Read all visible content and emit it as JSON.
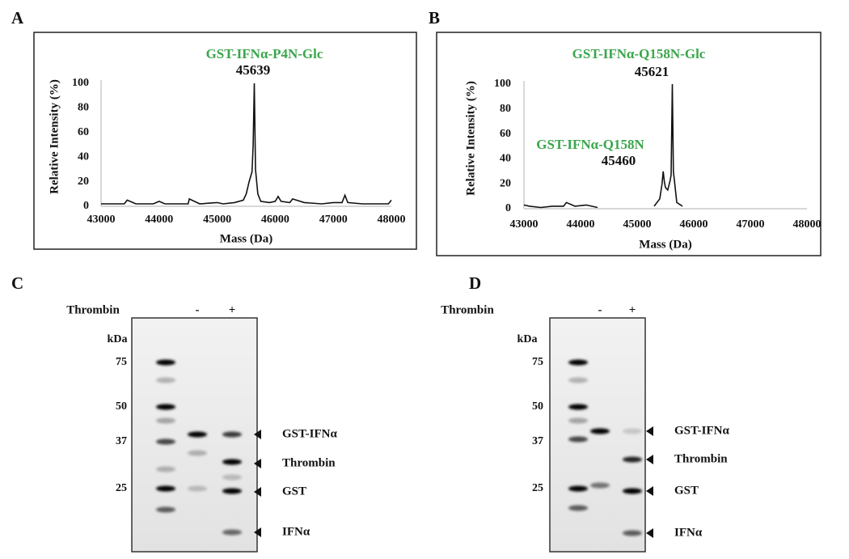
{
  "chart_data": [
    {
      "type": "line",
      "panel": "A",
      "xlabel": "Mass (Da)",
      "ylabel": "Relative Intensity (%)",
      "annotations": [
        {
          "text": "GST-IFNα-P4N-Glc",
          "color": "#3aa64c"
        },
        {
          "text": "45639",
          "color": "#111111"
        }
      ],
      "xlim": [
        43000,
        48000
      ],
      "ylim": [
        0,
        100
      ],
      "xticks": [
        43000,
        44000,
        45000,
        46000,
        47000,
        48000
      ],
      "yticks": [
        0,
        20,
        40,
        60,
        80,
        100
      ],
      "color": "#111111",
      "x": [
        43000,
        43200,
        43400,
        43450,
        43600,
        43900,
        44000,
        44100,
        44500,
        44520,
        44700,
        45000,
        45100,
        45300,
        45450,
        45500,
        45550,
        45600,
        45620,
        45639,
        45660,
        45700,
        45750,
        45900,
        46000,
        46050,
        46100,
        46250,
        46300,
        46500,
        46800,
        47000,
        47150,
        47200,
        47250,
        47500,
        47800,
        47950,
        48000
      ],
      "values": [
        2,
        2,
        2,
        5,
        2,
        2,
        4,
        2,
        2,
        6,
        2,
        3,
        2,
        3,
        5,
        10,
        20,
        28,
        50,
        100,
        30,
        10,
        4,
        3,
        4,
        8,
        4,
        3,
        6,
        3,
        2,
        3,
        3,
        9,
        3,
        2,
        2,
        2,
        5
      ]
    },
    {
      "type": "line",
      "panel": "B",
      "xlabel": "Mass (Da)",
      "ylabel": "Relative Intensity (%)",
      "annotations": [
        {
          "text": "GST-IFNα-Q158N-Glc",
          "color": "#3aa64c"
        },
        {
          "text": "45621",
          "color": "#111111"
        },
        {
          "text": "GST-IFNα-Q158N",
          "color": "#3aa64c"
        },
        {
          "text": "45460",
          "color": "#111111"
        }
      ],
      "xlim": [
        43000,
        48000
      ],
      "ylim": [
        0,
        100
      ],
      "xticks": [
        43000,
        44000,
        45000,
        46000,
        47000,
        48000
      ],
      "yticks": [
        0,
        20,
        40,
        60,
        80,
        100
      ],
      "color": "#111111",
      "x": [
        43000,
        43100,
        43300,
        43500,
        43700,
        43750,
        43900,
        44100,
        44300,
        44800,
        45300,
        45400,
        45440,
        45460,
        45480,
        45500,
        45540,
        45580,
        45600,
        45621,
        45640,
        45660,
        45700,
        45800
      ],
      "values": [
        3,
        2,
        1,
        2,
        2,
        5,
        2,
        3,
        1,
        null,
        2,
        8,
        20,
        30,
        22,
        17,
        15,
        22,
        27,
        100,
        30,
        22,
        5,
        2
      ]
    }
  ],
  "gels": [
    {
      "panel": "C",
      "treatment": "Thrombin",
      "lanes": [
        "-",
        "+"
      ],
      "marker_unit": "kDa",
      "markers": [
        75,
        50,
        37,
        25
      ],
      "bands": [
        "GST-IFNα",
        "Thrombin",
        "GST",
        "IFNα"
      ]
    },
    {
      "panel": "D",
      "treatment": "Thrombin",
      "lanes": [
        "-",
        "+"
      ],
      "marker_unit": "kDa",
      "markers": [
        75,
        50,
        37,
        25
      ],
      "bands": [
        "GST-IFNα",
        "Thrombin",
        "GST",
        "IFNα"
      ]
    }
  ]
}
